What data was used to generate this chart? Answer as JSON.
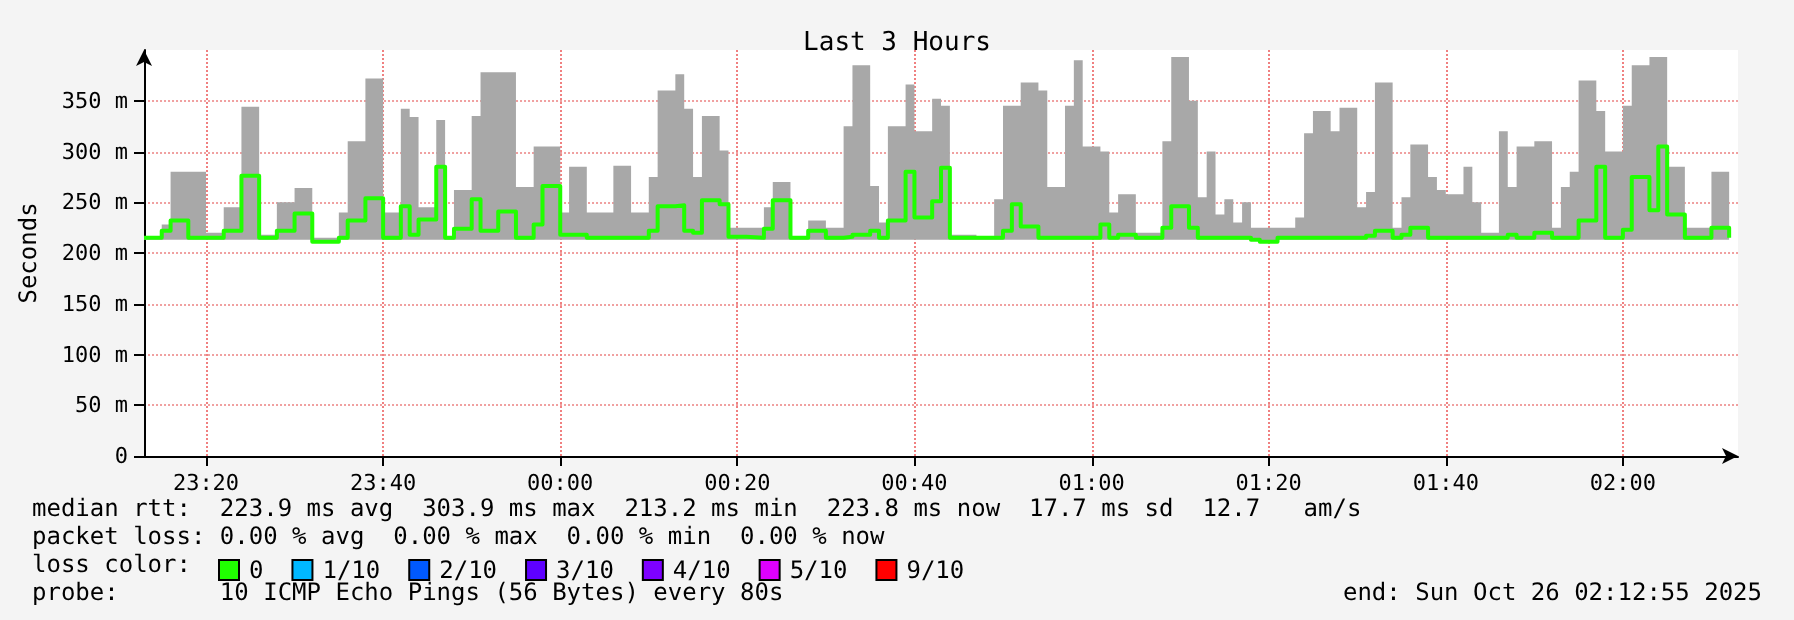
{
  "chart_data": {
    "type": "step",
    "title": "Last 3 Hours",
    "ylabel": "Seconds",
    "x": [
      "2025-10-25T23:13",
      "2025-10-25T23:15",
      "2025-10-25T23:16",
      "2025-10-25T23:18",
      "2025-10-25T23:20",
      "2025-10-25T23:22",
      "2025-10-25T23:24",
      "2025-10-25T23:26",
      "2025-10-25T23:28",
      "2025-10-25T23:30",
      "2025-10-25T23:32",
      "2025-10-25T23:35",
      "2025-10-25T23:36",
      "2025-10-25T23:38",
      "2025-10-25T23:40",
      "2025-10-25T23:42",
      "2025-10-25T23:43",
      "2025-10-25T23:44",
      "2025-10-25T23:46",
      "2025-10-25T23:47",
      "2025-10-25T23:48",
      "2025-10-25T23:50",
      "2025-10-25T23:51",
      "2025-10-25T23:53",
      "2025-10-25T23:55",
      "2025-10-25T23:57",
      "2025-10-25T23:58",
      "2025-10-26T00:00",
      "2025-10-26T00:01",
      "2025-10-26T00:03",
      "2025-10-26T00:06",
      "2025-10-26T00:08",
      "2025-10-26T00:10",
      "2025-10-26T00:11",
      "2025-10-26T00:13",
      "2025-10-26T00:14",
      "2025-10-26T00:15",
      "2025-10-26T00:16",
      "2025-10-26T00:18",
      "2025-10-26T00:19",
      "2025-10-26T00:21",
      "2025-10-26T00:23",
      "2025-10-26T00:24",
      "2025-10-26T00:26",
      "2025-10-26T00:28",
      "2025-10-26T00:30",
      "2025-10-26T00:32",
      "2025-10-26T00:33",
      "2025-10-26T00:35",
      "2025-10-26T00:36",
      "2025-10-26T00:37",
      "2025-10-26T00:39",
      "2025-10-26T00:40",
      "2025-10-26T00:42",
      "2025-10-26T00:43",
      "2025-10-26T00:44",
      "2025-10-26T00:47",
      "2025-10-26T00:49",
      "2025-10-26T00:50",
      "2025-10-26T00:51",
      "2025-10-26T00:52",
      "2025-10-26T00:54",
      "2025-10-26T00:55",
      "2025-10-26T00:57",
      "2025-10-26T00:58",
      "2025-10-26T00:59",
      "2025-10-26T01:01",
      "2025-10-26T01:02",
      "2025-10-26T01:03",
      "2025-10-26T01:05",
      "2025-10-26T01:08",
      "2025-10-26T01:09",
      "2025-10-26T01:11",
      "2025-10-26T01:12",
      "2025-10-26T01:13",
      "2025-10-26T01:14",
      "2025-10-26T01:15",
      "2025-10-26T01:16",
      "2025-10-26T01:17",
      "2025-10-26T01:18",
      "2025-10-26T01:19",
      "2025-10-26T01:21",
      "2025-10-26T01:23",
      "2025-10-26T01:24",
      "2025-10-26T01:25",
      "2025-10-26T01:27",
      "2025-10-26T01:28",
      "2025-10-26T01:30",
      "2025-10-26T01:31",
      "2025-10-26T01:32",
      "2025-10-26T01:34",
      "2025-10-26T01:35",
      "2025-10-26T01:36",
      "2025-10-26T01:38",
      "2025-10-26T01:39",
      "2025-10-26T01:40",
      "2025-10-26T01:42",
      "2025-10-26T01:43",
      "2025-10-26T01:44",
      "2025-10-26T01:46",
      "2025-10-26T01:47",
      "2025-10-26T01:48",
      "2025-10-26T01:50",
      "2025-10-26T01:52",
      "2025-10-26T01:53",
      "2025-10-26T01:54",
      "2025-10-26T01:55",
      "2025-10-26T01:57",
      "2025-10-26T01:58",
      "2025-10-26T02:00",
      "2025-10-26T02:01",
      "2025-10-26T02:03",
      "2025-10-26T02:04",
      "2025-10-26T02:05",
      "2025-10-26T02:07",
      "2025-10-26T02:10",
      "2025-10-26T02:12"
    ],
    "series": [
      {
        "name": "0",
        "color": "#20ff00",
        "values": [
          215,
          222,
          232,
          215,
          215,
          222,
          276,
          215,
          222,
          239,
          211,
          215,
          232,
          254,
          215,
          246,
          218,
          233,
          285,
          215,
          224,
          253,
          222,
          241,
          215,
          228,
          266,
          218,
          218,
          215,
          215,
          215,
          222,
          246,
          247,
          222,
          220,
          252,
          248,
          216,
          215,
          224,
          252,
          215,
          222,
          215,
          216,
          218,
          222,
          215,
          232,
          280,
          235,
          251,
          284,
          215,
          215,
          215,
          222,
          248,
          226,
          215,
          215,
          215,
          215,
          215,
          228,
          215,
          218,
          215,
          225,
          246,
          225,
          215,
          215,
          215,
          215,
          215,
          215,
          213,
          211,
          215,
          215,
          215,
          215,
          215,
          215,
          215,
          217,
          222,
          215,
          218,
          225,
          215,
          215,
          215,
          215,
          215,
          215,
          215,
          218,
          215,
          220,
          215,
          215,
          215,
          232,
          285,
          215,
          223,
          275,
          242,
          305,
          238,
          215,
          225,
          215
        ],
        "lower": [
          213,
          213,
          213,
          213,
          213,
          213,
          213,
          213,
          213,
          213,
          211,
          213,
          213,
          213,
          213,
          213,
          213,
          213,
          213,
          213,
          213,
          213,
          213,
          213,
          213,
          213,
          213,
          213,
          213,
          213,
          213,
          213,
          213,
          213,
          213,
          213,
          213,
          213,
          213,
          213,
          213,
          213,
          213,
          213,
          213,
          213,
          213,
          213,
          213,
          213,
          213,
          213,
          213,
          213,
          213,
          213,
          213,
          213,
          213,
          213,
          213,
          213,
          213,
          213,
          213,
          213,
          213,
          213,
          213,
          213,
          213,
          213,
          213,
          213,
          213,
          213,
          213,
          213,
          213,
          213,
          211,
          213,
          213,
          213,
          213,
          213,
          213,
          213,
          213,
          213,
          213,
          213,
          213,
          213,
          213,
          213,
          213,
          213,
          213,
          213,
          213,
          213,
          213,
          213,
          213,
          213,
          213,
          213,
          213,
          213,
          213,
          213,
          213,
          213,
          213,
          213,
          213
        ],
        "upper": [
          215,
          228,
          280,
          280,
          220,
          245,
          344,
          218,
          250,
          264,
          215,
          240,
          310,
          372,
          240,
          342,
          334,
          245,
          331,
          215,
          262,
          335,
          378,
          378,
          265,
          305,
          305,
          240,
          285,
          240,
          286,
          240,
          275,
          360,
          376,
          342,
          275,
          335,
          301,
          225,
          225,
          245,
          270,
          215,
          232,
          225,
          325,
          385,
          266,
          230,
          325,
          366,
          320,
          352,
          345,
          218,
          215,
          253,
          345,
          345,
          368,
          360,
          265,
          345,
          390,
          305,
          300,
          240,
          258,
          220,
          310,
          393,
          350,
          255,
          300,
          238,
          253,
          230,
          250,
          225,
          225,
          225,
          235,
          318,
          340,
          320,
          343,
          245,
          260,
          368,
          225,
          255,
          307,
          275,
          262,
          258,
          285,
          250,
          220,
          320,
          265,
          305,
          310,
          225,
          265,
          280,
          370,
          340,
          300,
          345,
          385,
          393,
          393,
          285,
          225,
          280,
          215
        ]
      },
      {
        "name": "1/10",
        "color": "#00b8ff",
        "values": [
          null,
          null,
          null,
          null,
          null,
          null,
          null,
          null,
          null,
          null,
          null,
          null,
          null,
          null,
          null,
          null,
          null,
          null,
          null,
          null,
          null,
          null,
          null,
          null,
          null,
          null,
          null,
          null,
          null,
          null,
          null,
          null,
          null,
          null,
          null,
          null,
          null,
          null,
          null,
          null,
          null,
          null,
          null,
          null,
          null,
          null,
          null,
          null,
          null,
          null,
          null,
          null,
          null,
          null,
          null,
          null,
          null,
          null,
          null,
          null,
          null,
          null,
          null,
          null,
          null,
          null,
          null,
          null,
          null,
          null,
          null,
          null,
          null,
          null,
          null,
          null,
          null,
          null,
          null,
          null,
          null,
          null,
          null,
          null,
          null,
          null,
          null,
          null,
          null,
          null,
          null,
          null,
          null,
          null,
          null,
          null,
          null,
          null,
          null,
          null,
          null,
          null,
          null,
          null,
          null,
          null,
          null,
          null,
          null,
          null,
          null,
          null,
          null,
          null,
          null,
          null,
          null
        ]
      },
      {
        "name": "2/10",
        "color": "#0059ff",
        "values": [
          null,
          null,
          null,
          null,
          null,
          null,
          null,
          null,
          null,
          null,
          null,
          null,
          null,
          null,
          null,
          null,
          null,
          null,
          null,
          null,
          null,
          null,
          null,
          null,
          null,
          null,
          null,
          null,
          null,
          null,
          null,
          null,
          null,
          null,
          null,
          null,
          null,
          null,
          null,
          null,
          null,
          null,
          null,
          null,
          null,
          null,
          null,
          null,
          null,
          null,
          null,
          null,
          null,
          null,
          null,
          null,
          null,
          null,
          null,
          null,
          null,
          null,
          null,
          null,
          null,
          null,
          null,
          null,
          null,
          null,
          null,
          null,
          null,
          null,
          null,
          null,
          null,
          null,
          null,
          null,
          null,
          null,
          null,
          null,
          null,
          null,
          null,
          null,
          null,
          null,
          null,
          null,
          null,
          null,
          null,
          null,
          null,
          null,
          null,
          null,
          null,
          null,
          null,
          null,
          null,
          null,
          null,
          null,
          null,
          null,
          null,
          null,
          null,
          null,
          null,
          null,
          null
        ]
      },
      {
        "name": "3/10",
        "color": "#5e00ff",
        "values": [
          null,
          null,
          null,
          null,
          null,
          null,
          null,
          null,
          null,
          null,
          null,
          null,
          null,
          null,
          null,
          null,
          null,
          null,
          null,
          null,
          null,
          null,
          null,
          null,
          null,
          null,
          null,
          null,
          null,
          null,
          null,
          null,
          null,
          null,
          null,
          null,
          null,
          null,
          null,
          null,
          null,
          null,
          null,
          null,
          null,
          null,
          null,
          null,
          null,
          null,
          null,
          null,
          null,
          null,
          null,
          null,
          null,
          null,
          null,
          null,
          null,
          null,
          null,
          null,
          null,
          null,
          null,
          null,
          null,
          null,
          null,
          null,
          null,
          null,
          null,
          null,
          null,
          null,
          null,
          null,
          null,
          null,
          null,
          null,
          null,
          null,
          null,
          null,
          null,
          null,
          null,
          null,
          null,
          null,
          null,
          null,
          null,
          null,
          null,
          null,
          null,
          null,
          null,
          null,
          null,
          null,
          null,
          null,
          null,
          null,
          null,
          null,
          null,
          null,
          null,
          null,
          null
        ]
      },
      {
        "name": "4/10",
        "color": "#7e00ff",
        "values": [
          null,
          null,
          null,
          null,
          null,
          null,
          null,
          null,
          null,
          null,
          null,
          null,
          null,
          null,
          null,
          null,
          null,
          null,
          null,
          null,
          null,
          null,
          null,
          null,
          null,
          null,
          null,
          null,
          null,
          null,
          null,
          null,
          null,
          null,
          null,
          null,
          null,
          null,
          null,
          null,
          null,
          null,
          null,
          null,
          null,
          null,
          null,
          null,
          null,
          null,
          null,
          null,
          null,
          null,
          null,
          null,
          null,
          null,
          null,
          null,
          null,
          null,
          null,
          null,
          null,
          null,
          null,
          null,
          null,
          null,
          null,
          null,
          null,
          null,
          null,
          null,
          null,
          null,
          null,
          null,
          null,
          null,
          null,
          null,
          null,
          null,
          null,
          null,
          null,
          null,
          null,
          null,
          null,
          null,
          null,
          null,
          null,
          null,
          null,
          null,
          null,
          null,
          null,
          null,
          null,
          null,
          null,
          null,
          null,
          null,
          null,
          null,
          null,
          null,
          null,
          null,
          null
        ]
      },
      {
        "name": "5/10",
        "color": "#dd00ff",
        "values": [
          null,
          null,
          null,
          null,
          null,
          null,
          null,
          null,
          null,
          null,
          null,
          null,
          null,
          null,
          null,
          null,
          null,
          null,
          null,
          null,
          null,
          null,
          null,
          null,
          null,
          null,
          null,
          null,
          null,
          null,
          null,
          null,
          null,
          null,
          null,
          null,
          null,
          null,
          null,
          null,
          null,
          null,
          null,
          null,
          null,
          null,
          null,
          null,
          null,
          null,
          null,
          null,
          null,
          null,
          null,
          null,
          null,
          null,
          null,
          null,
          null,
          null,
          null,
          null,
          null,
          null,
          null,
          null,
          null,
          null,
          null,
          null,
          null,
          null,
          null,
          null,
          null,
          null,
          null,
          null,
          null,
          null,
          null,
          null,
          null,
          null,
          null,
          null,
          null,
          null,
          null,
          null,
          null,
          null,
          null,
          null,
          null,
          null,
          null,
          null,
          null,
          null,
          null,
          null,
          null,
          null,
          null,
          null,
          null,
          null,
          null,
          null,
          null,
          null,
          null,
          null,
          null
        ]
      },
      {
        "name": "9/10",
        "color": "#ff0000",
        "values": [
          null,
          null,
          null,
          null,
          null,
          null,
          null,
          null,
          null,
          null,
          null,
          null,
          null,
          null,
          null,
          null,
          null,
          null,
          null,
          null,
          null,
          null,
          null,
          null,
          null,
          null,
          null,
          null,
          null,
          null,
          null,
          null,
          null,
          null,
          null,
          null,
          null,
          null,
          null,
          null,
          null,
          null,
          null,
          null,
          null,
          null,
          null,
          null,
          null,
          null,
          null,
          null,
          null,
          null,
          null,
          null,
          null,
          null,
          null,
          null,
          null,
          null,
          null,
          null,
          null,
          null,
          null,
          null,
          null,
          null,
          null,
          null,
          null,
          null,
          null,
          null,
          null,
          null,
          null,
          null,
          null,
          null,
          null,
          null,
          null,
          null,
          null,
          null,
          null,
          null,
          null,
          null,
          null,
          null,
          null,
          null,
          null,
          null,
          null,
          null,
          null,
          null,
          null,
          null,
          null,
          null,
          null,
          null,
          null,
          null,
          null,
          null,
          null,
          null,
          null,
          null,
          null
        ]
      }
    ],
    "xlim": [
      "2025-10-25T23:13",
      "2025-10-26T02:13"
    ],
    "xticks": [
      {
        "value": "2025-10-25T23:20",
        "label": "23:20"
      },
      {
        "value": "2025-10-25T23:40",
        "label": "23:40"
      },
      {
        "value": "2025-10-26T00:00",
        "label": "00:00"
      },
      {
        "value": "2025-10-26T00:20",
        "label": "00:20"
      },
      {
        "value": "2025-10-26T00:40",
        "label": "00:40"
      },
      {
        "value": "2025-10-26T01:00",
        "label": "01:00"
      },
      {
        "value": "2025-10-26T01:20",
        "label": "01:20"
      },
      {
        "value": "2025-10-26T01:40",
        "label": "01:40"
      },
      {
        "value": "2025-10-26T02:00",
        "label": "02:00"
      }
    ],
    "ylim": [
      0,
      400
    ],
    "yticks": [
      0,
      {
        "value": 50,
        "label": "50 m"
      },
      {
        "value": 100,
        "label": "100 m"
      },
      {
        "value": 150,
        "label": "150 m"
      },
      {
        "value": 200,
        "label": "200 m"
      },
      {
        "value": 250,
        "label": "250 m"
      },
      {
        "value": 300,
        "label": "300 m"
      },
      {
        "value": 350,
        "label": "350 m"
      }
    ],
    "grid": true,
    "marker": "none",
    "legend": "bottom left",
    "annotations": [
      "median rtt:  223.9 ms avg  303.9 ms max  213.2 ms min  223.8 ms now  17.7 ms sd  12.7   am/s",
      "packet loss: 0.00 % avg  0.00 % max  0.00 % min  0.00 % now",
      "loss color:",
      "probe:       10 ICMP Echo Pings (56 Bytes) every 80s",
      "end: Sun Oct 26 02:12:55 2025"
    ]
  }
}
